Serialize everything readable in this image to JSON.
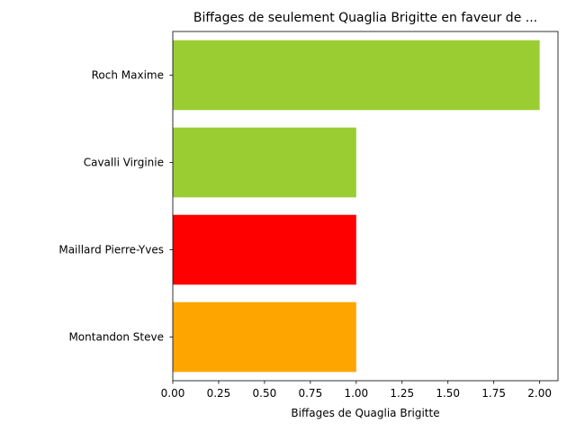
{
  "chart_data": {
    "type": "bar",
    "orientation": "horizontal",
    "title": "Biffages de seulement Quaglia Brigitte en faveur de ...",
    "xlabel": "Biffages de Quaglia Brigitte",
    "ylabel": "",
    "categories": [
      "Roch Maxime",
      "Cavalli Virginie",
      "Maillard Pierre-Yves",
      "Montandon Steve"
    ],
    "values": [
      2,
      1,
      1,
      1
    ],
    "colors": [
      "#9acd32",
      "#9acd32",
      "#ff0000",
      "#ffa500"
    ],
    "xlim": [
      0,
      2.1
    ],
    "xticks": [
      0.0,
      0.25,
      0.5,
      0.75,
      1.0,
      1.25,
      1.5,
      1.75,
      2.0
    ],
    "xtick_labels": [
      "0.00",
      "0.25",
      "0.50",
      "0.75",
      "1.00",
      "1.25",
      "1.50",
      "1.75",
      "2.00"
    ],
    "grid": false,
    "legend": "none"
  }
}
